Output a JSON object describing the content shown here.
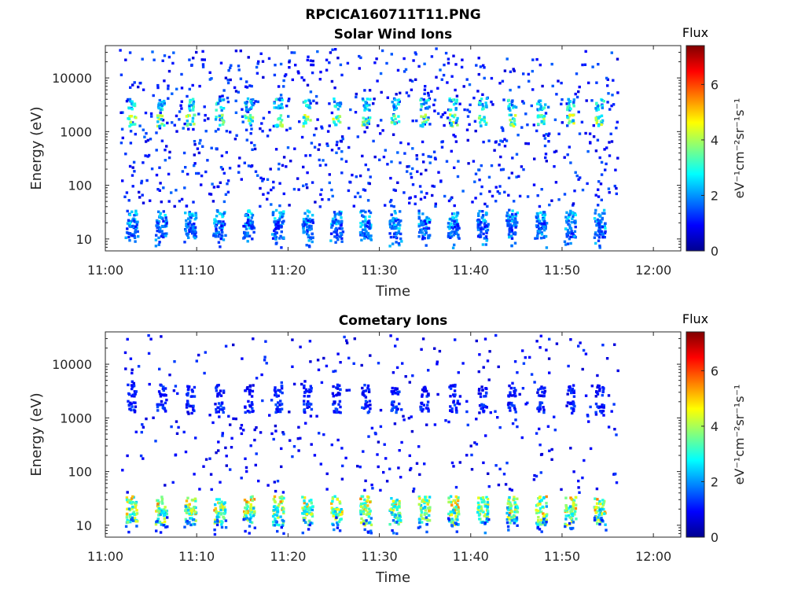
{
  "figure_title": "RPCICA160711T11.PNG",
  "colormap": [
    "#00008f",
    "#0000ff",
    "#0080ff",
    "#00ffff",
    "#80ff80",
    "#ffff00",
    "#ff8000",
    "#ff0000",
    "#800000"
  ],
  "chart_data": [
    {
      "type": "heatmap",
      "title": "Solar Wind Ions",
      "xlabel": "Time",
      "ylabel": "Energy (eV)",
      "x_ticks": [
        "11:00",
        "11:10",
        "11:20",
        "11:30",
        "11:40",
        "11:50",
        "12:00"
      ],
      "xlim_minutes": [
        0,
        63
      ],
      "data_extent_minutes": [
        1.5,
        56
      ],
      "y_scale": "log",
      "y_ticks": [
        10,
        100,
        1000,
        10000
      ],
      "y_tick_labels": [
        "10",
        "100",
        "1000",
        "10000"
      ],
      "ylim": [
        6,
        40000
      ],
      "colorbar": {
        "title": "Flux",
        "label": "eV⁻¹cm⁻²sr⁻¹s⁻¹",
        "ticks": [
          "0",
          "2",
          "4",
          "6"
        ],
        "range": [
          0,
          7.4
        ]
      },
      "sweep_period_minutes": 3.2,
      "bands": [
        {
          "energy_eV": 3200,
          "intensity": 2.6
        },
        {
          "energy_eV": 1600,
          "intensity": 3.6
        },
        {
          "energy_eV": 23,
          "intensity": 2.2
        },
        {
          "energy_eV": 15,
          "intensity": 1.6
        }
      ],
      "background_intensity": 1.2
    },
    {
      "type": "heatmap",
      "title": "Cometary Ions",
      "xlabel": "Time",
      "ylabel": "Energy (eV)",
      "x_ticks": [
        "11:00",
        "11:10",
        "11:20",
        "11:30",
        "11:40",
        "11:50",
        "12:00"
      ],
      "xlim_minutes": [
        0,
        63
      ],
      "data_extent_minutes": [
        1.5,
        56
      ],
      "y_scale": "log",
      "y_ticks": [
        10,
        100,
        1000,
        10000
      ],
      "y_tick_labels": [
        "10",
        "100",
        "1000",
        "10000"
      ],
      "ylim": [
        6,
        40000
      ],
      "colorbar": {
        "title": "Flux",
        "label": "eV⁻¹cm⁻²sr⁻¹s⁻¹",
        "ticks": [
          "0",
          "2",
          "4",
          "6"
        ],
        "range": [
          0,
          7.4
        ]
      },
      "sweep_period_minutes": 3.2,
      "bands": [
        {
          "energy_eV": 3200,
          "intensity": 1.1
        },
        {
          "energy_eV": 1600,
          "intensity": 1.2
        },
        {
          "energy_eV": 23,
          "intensity": 4.3
        },
        {
          "energy_eV": 15,
          "intensity": 3.6
        }
      ],
      "background_intensity": 1.0
    }
  ]
}
